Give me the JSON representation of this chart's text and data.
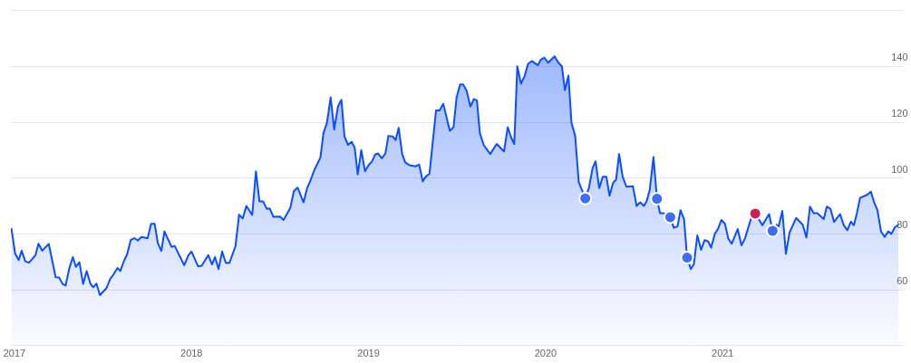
{
  "chart_data": {
    "type": "area",
    "xlim": [
      2016.98,
      2022.02
    ],
    "xticks": [
      2017,
      2018,
      2019,
      2020,
      2021
    ],
    "ylim": [
      40,
      160
    ],
    "yticks": [
      60,
      80,
      100,
      120,
      140,
      {
        "value": 160,
        "label": null
      }
    ],
    "grid": "y",
    "legend": false,
    "series": [
      {
        "color": "#0b4dff",
        "x": [
          2016.983,
          2017.004,
          2017.024,
          2017.041,
          2017.061,
          2017.082,
          2017.102,
          2017.119,
          2017.136,
          2017.157,
          2017.194,
          2017.233,
          2017.252,
          2017.272,
          2017.289,
          2017.31,
          2017.33,
          2017.347,
          2017.367,
          2017.388,
          2017.408,
          2017.429,
          2017.445,
          2017.463,
          2017.483,
          2017.52,
          2017.541,
          2017.558,
          2017.582,
          2017.598,
          2017.619,
          2017.636,
          2017.657,
          2017.677,
          2017.697,
          2017.718,
          2017.752,
          2017.772,
          2017.792,
          2017.81,
          2017.83,
          2017.847,
          2017.888,
          2017.905,
          2017.959,
          2017.983,
          2018.0,
          2018.037,
          2018.058,
          2018.095,
          2018.116,
          2018.133,
          2018.153,
          2018.173,
          2018.194,
          2018.214,
          2018.248,
          2018.269,
          2018.289,
          2018.31,
          2018.343,
          2018.364,
          2018.384,
          2018.405,
          2018.425,
          2018.442,
          2018.463,
          2018.5,
          2018.52,
          2018.558,
          2018.578,
          2018.599,
          2018.633,
          2018.653,
          2018.67,
          2018.694,
          2018.728,
          2018.745,
          2018.765,
          2018.786,
          2018.806,
          2018.827,
          2018.847,
          2018.864,
          2018.884,
          2018.905,
          2018.922,
          2018.939,
          2018.959,
          2018.98,
          2019.0,
          2019.02,
          2019.037,
          2019.054,
          2019.075,
          2019.095,
          2019.112,
          2019.136,
          2019.153,
          2019.17,
          2019.19,
          2019.207,
          2019.231,
          2019.265,
          2019.286,
          2019.306,
          2019.323,
          2019.344,
          2019.381,
          2019.401,
          2019.422,
          2019.459,
          2019.48,
          2019.497,
          2019.517,
          2019.534,
          2019.554,
          2019.575,
          2019.595,
          2019.612,
          2019.629,
          2019.65,
          2019.687,
          2019.724,
          2019.765,
          2019.786,
          2019.806,
          2019.823,
          2019.84,
          2019.861,
          2019.881,
          2019.901,
          2019.922,
          2019.956,
          2019.973,
          2019.993,
          2020.014,
          2020.051,
          2020.071,
          2020.092,
          2020.109,
          2020.129,
          2020.146,
          2020.167,
          2020.187,
          2020.224,
          2020.245,
          2020.265,
          2020.282,
          2020.303,
          2020.323,
          2020.343,
          2020.361,
          2020.381,
          2020.398,
          2020.415,
          2020.435,
          2020.456,
          2020.493,
          2020.514,
          2020.534,
          2020.555,
          2020.571,
          2020.588,
          2020.609,
          2020.629,
          2020.646,
          2020.667,
          2020.704,
          2020.724,
          2020.745,
          2020.762,
          2020.782,
          2020.799,
          2020.82,
          2020.837,
          2020.857,
          2020.878,
          2020.898,
          2020.918,
          2020.935,
          2020.956,
          2020.973,
          2020.993,
          2021.013,
          2021.031,
          2021.051,
          2021.085,
          2021.106,
          2021.126,
          2021.16,
          2021.184,
          2021.224,
          2021.262,
          2021.282,
          2021.303,
          2021.316,
          2021.337,
          2021.357,
          2021.378,
          2021.415,
          2021.452,
          2021.473,
          2021.493,
          2021.514,
          2021.534,
          2021.571,
          2021.588,
          2021.609,
          2021.629,
          2021.663,
          2021.684,
          2021.704,
          2021.724,
          2021.741,
          2021.759,
          2021.776,
          2021.816,
          2021.837,
          2021.857,
          2021.874,
          2021.894,
          2021.915,
          2021.935,
          2021.953,
          2021.973,
          2021.993
        ],
        "values": [
          82,
          73,
          70.6,
          74,
          70.2,
          69.7,
          71.1,
          72.4,
          76.5,
          74,
          76.4,
          64.5,
          64.4,
          62.1,
          61.5,
          67.7,
          71.7,
          68.2,
          69.9,
          62.1,
          66.7,
          62.2,
          60.9,
          62.2,
          58.1,
          60.6,
          63.9,
          65.3,
          67.8,
          66.7,
          70.4,
          72.6,
          77.8,
          78.5,
          77.6,
          78.9,
          78.4,
          83.6,
          83.6,
          76.7,
          73.9,
          80.9,
          75.3,
          75.7,
          68.8,
          72.4,
          73.7,
          68.4,
          68.6,
          72.4,
          69.1,
          71.7,
          67.4,
          73.7,
          69.6,
          69.6,
          75.5,
          86.9,
          85.5,
          90,
          86.8,
          102.4,
          91.6,
          91.6,
          89,
          89.1,
          86.1,
          86.2,
          85,
          89.3,
          95.3,
          96.6,
          91.3,
          96.4,
          98.8,
          102.9,
          107.3,
          116,
          119.8,
          128.9,
          117.4,
          125.6,
          128,
          114.9,
          111.9,
          113,
          110.8,
          101.3,
          110,
          102.4,
          104.6,
          106,
          108.4,
          108.8,
          107.1,
          108.8,
          115.1,
          114.9,
          113.6,
          118,
          108.6,
          105.6,
          104.6,
          104.2,
          104.8,
          98.8,
          100.5,
          101.5,
          124.2,
          124.2,
          126.6,
          116.9,
          118.2,
          128.8,
          133.5,
          133.5,
          131.3,
          125.6,
          128.3,
          127.8,
          116,
          111.9,
          108.6,
          112.2,
          109.5,
          118.2,
          114.4,
          112.2,
          140,
          133.8,
          136.5,
          140.9,
          141.9,
          140.4,
          142.4,
          143.1,
          141.3,
          143.6,
          141.4,
          140,
          131.5,
          136.7,
          119.8,
          115.1,
          98.6,
          92.7,
          96.6,
          103.5,
          106,
          96.4,
          100.5,
          100.5,
          93.7,
          98.3,
          99.4,
          108.6,
          100.5,
          96.9,
          97.1,
          90,
          91.3,
          90,
          91.8,
          95.8,
          107.5,
          92.6,
          87.4,
          87.4,
          86,
          82.2,
          82.7,
          88.5,
          85.2,
          71.5,
          67.4,
          69.1,
          79.5,
          74.3,
          77.8,
          77.3,
          75.1,
          80.1,
          81.7,
          85,
          83.6,
          78.4,
          76.5,
          81.7,
          75.9,
          78.4,
          85.5,
          87.3,
          83.1,
          87.1,
          81.1,
          83.3,
          82.7,
          88.2,
          72.9,
          80.6,
          85.7,
          83.3,
          78.7,
          89.8,
          87.4,
          87.4,
          85.3,
          89.8,
          88.9,
          84.3,
          87.1,
          83.1,
          81.3,
          84.4,
          83.1,
          87.7,
          92.9,
          94,
          95.1,
          91,
          88.5,
          80.9,
          78.9,
          80.9,
          80,
          82.4,
          83.3
        ]
      },
      {
        "type": "scatter",
        "marker": "circle",
        "color": "#3b6ef5",
        "x": [
          2020.224,
          2020.629,
          2020.704,
          2020.799,
          2021.282
        ],
        "values": [
          92.7,
          92.6,
          86,
          71.5,
          81.1
        ]
      },
      {
        "type": "scatter",
        "marker": "circle",
        "color": "#cc1f5a",
        "x": [
          2021.184
        ],
        "values": [
          87.3
        ]
      }
    ]
  }
}
